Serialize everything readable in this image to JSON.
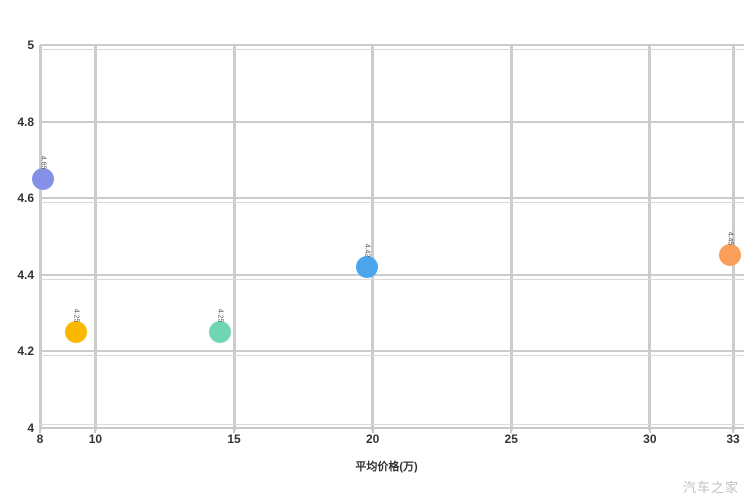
{
  "chart_data": {
    "type": "scatter",
    "title": "",
    "xlabel": "平均价格(万)",
    "ylabel": "",
    "xlim": [
      8,
      33
    ],
    "ylim": [
      4,
      5
    ],
    "grid": true,
    "legend": "none",
    "x_ticks": [
      "8",
      "10",
      "15",
      "20",
      "25",
      "30",
      "33"
    ],
    "x_tick_values": [
      8,
      10,
      15,
      20,
      25,
      30,
      33
    ],
    "y_ticks": [
      "5",
      "4.8",
      "4.6",
      "4.4",
      "4.2",
      "4"
    ],
    "y_tick_values": [
      5,
      4.8,
      4.6,
      4.4,
      4.2,
      4
    ],
    "points": [
      {
        "x": 8.1,
        "y": 4.65,
        "label": "4.65",
        "color": "#8591e6"
      },
      {
        "x": 9.3,
        "y": 4.25,
        "label": "4.25",
        "color": "#fcb800"
      },
      {
        "x": 14.5,
        "y": 4.25,
        "label": "4.25",
        "color": "#6fd6b2"
      },
      {
        "x": 19.8,
        "y": 4.42,
        "label": "4.42",
        "color": "#4aa5ec"
      },
      {
        "x": 32.9,
        "y": 4.45,
        "label": "4.45",
        "color": "#fa9f5a"
      }
    ]
  },
  "colors": {
    "background": "#ffffff",
    "grid": "#cccccc",
    "axis": "#c9c9c9",
    "tick_text": "#333333",
    "point_label_text": "#555555",
    "watermark": "#c2c2c2"
  },
  "watermark": {
    "text": "汽车之家"
  }
}
